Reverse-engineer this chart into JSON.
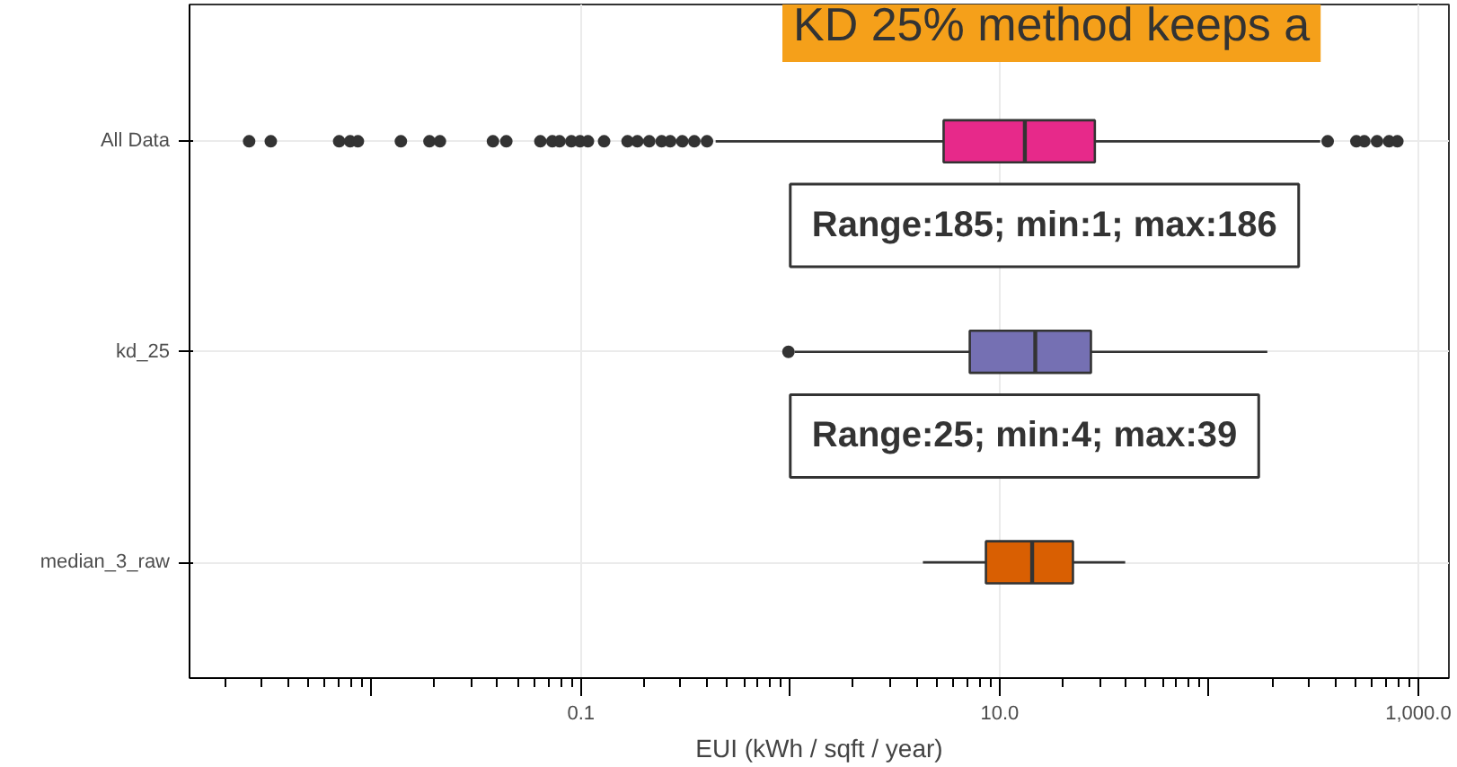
{
  "chart_data": {
    "type": "box",
    "orientation": "horizontal",
    "title": "KD 25% method keeps a",
    "xlabel": "EUI (kWh / sqft / year)",
    "categories": [
      "All Data",
      "kd_25",
      "median_3_raw"
    ],
    "log": "x",
    "xlim": [
      0.00135,
      1400
    ],
    "xticks": [
      {
        "value": 0.01,
        "label": null
      },
      {
        "value": 0.1,
        "label": "0.1"
      },
      {
        "value": 1,
        "label": null
      },
      {
        "value": 10,
        "label": "10.0"
      },
      {
        "value": 100,
        "label": null
      },
      {
        "value": 1000,
        "label": "1,000.0"
      }
    ],
    "grid": true,
    "marker": "circle",
    "series": [
      {
        "color": "#e7298a",
        "boxes": [
          {
            "low": 0.44,
            "q1": 5.4,
            "median": 13.2,
            "q3": 28.5,
            "high": 340,
            "outliers": [
              0.0026,
              0.0033,
              0.007,
              0.0079,
              0.0086,
              0.0138,
              0.0189,
              0.0212,
              0.038,
              0.044,
              0.064,
              0.073,
              0.079,
              0.09,
              0.099,
              0.108,
              0.129,
              0.167,
              0.186,
              0.212,
              0.243,
              0.267,
              0.305,
              0.348,
              0.4,
              369,
              506,
              552,
              635,
              725,
              794
            ]
          },
          null,
          null
        ]
      },
      {
        "color": "#7570b3",
        "boxes": [
          null,
          {
            "low": 1.05,
            "q1": 7.2,
            "median": 14.8,
            "q3": 27.3,
            "high": 190,
            "outliers": [
              0.98
            ]
          },
          null
        ]
      },
      {
        "color": "#d95f02",
        "boxes": [
          null,
          null,
          {
            "low": 4.3,
            "q1": 8.6,
            "median": 14.3,
            "q3": 22.4,
            "high": 39.8
          }
        ]
      }
    ],
    "annotations": [
      "Range:185; min:1; max:186",
      "Range:25; min:4; max:39"
    ]
  }
}
